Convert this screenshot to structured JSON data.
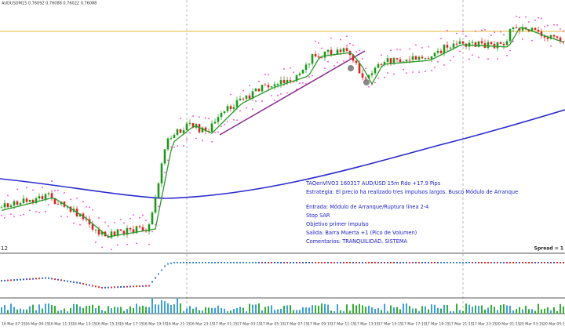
{
  "header": {
    "symbol_line": "AUDUSDM15 0.76092 0.76088 0.76022 0.76088"
  },
  "annotation": {
    "lines": [
      "TAQenVIVO3 160317 AUD/USD 15m Rdo +17.9 Pips",
      "Estrategia: El precio ha realizado tres impulsos largos. Busco Módulo de Arranque",
      "Entrada: Módulo de Arranque/Ruptura línea 2-4",
      "Stop SAR",
      "Objetivo primer impulso",
      "Salida: Barra Muerta +1 (Pico de Volumen)",
      "Comentarios: TRANQUILIDAD. SISTEMA"
    ]
  },
  "status": {
    "spread": "Spread = 1",
    "left_label": "12"
  },
  "time_axis": {
    "labels": [
      "16 Mar 07:15",
      "16 Mar 09:15",
      "16 Mar 11:15",
      "16 Mar 13:15",
      "16 Mar 15:15",
      "16 Mar 17:15",
      "16 Mar 19:15",
      "16 Mar 21:15",
      "16 Mar 23:15",
      "17 Mar 01:15",
      "17 Mar 03:15",
      "17 Mar 05:15",
      "17 Mar 07:15",
      "17 Mar 09:15",
      "17 Mar 11:15",
      "17 Mar 13:15",
      "17 Mar 15:15",
      "17 Mar 17:15",
      "17 Mar 19:15",
      "17 Mar 21:15",
      "17 Mar 23:15",
      "20 Mar 01:15",
      "20 Mar 03:15",
      "20 Mar 05:15"
    ]
  }
}
